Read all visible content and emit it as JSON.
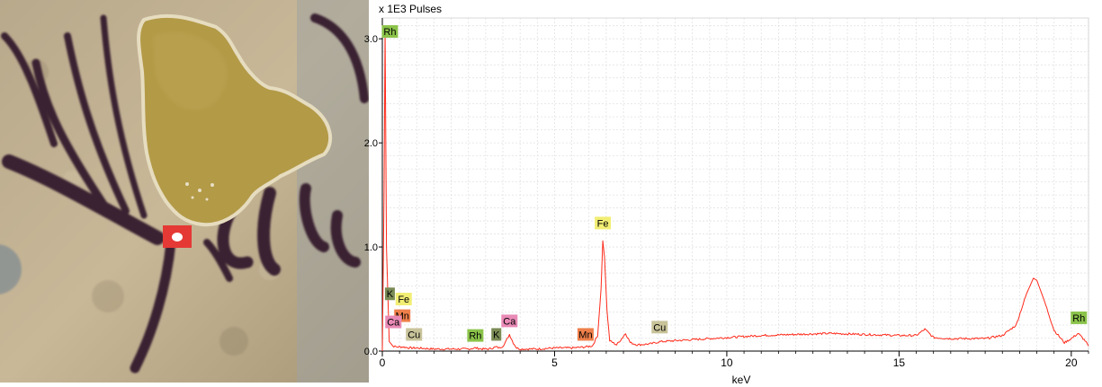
{
  "photo": {
    "subject": "ink-on-paper-micrograph",
    "marker_color": "#e53935"
  },
  "chart_data": {
    "type": "line",
    "unit_label": "x 1E3 Pulses",
    "xlabel": "keV",
    "ylabel": "",
    "xlim": [
      0,
      20.5
    ],
    "ylim": [
      0,
      3.2
    ],
    "x_ticks": [
      0,
      5,
      10,
      15,
      20
    ],
    "y_ticks": [
      0.0,
      1.0,
      2.0,
      3.0
    ],
    "x_tick_labels": [
      "0",
      "5",
      "10",
      "15",
      "20"
    ],
    "y_tick_labels": [
      "0.0",
      "1.0",
      "2.0",
      "3.0"
    ],
    "grid": true,
    "line_color": "#ff2a1a",
    "series": [
      {
        "x": [
          0.0,
          0.05,
          0.08,
          0.12,
          0.2,
          0.3,
          0.4,
          0.6,
          0.8,
          1.0,
          1.5,
          2.0,
          2.5,
          2.7,
          2.9,
          3.1,
          3.3,
          3.4,
          3.5,
          3.6,
          3.69,
          3.8,
          3.9,
          4.0,
          4.5,
          5.0,
          5.5,
          5.9,
          6.1,
          6.25,
          6.35,
          6.4,
          6.45,
          6.52,
          6.6,
          6.8,
          6.95,
          7.06,
          7.2,
          7.4,
          7.8,
          8.05,
          8.5,
          9.0,
          9.5,
          10.0,
          10.5,
          11.0,
          12.0,
          13.0,
          14.0,
          15.0,
          15.5,
          15.75,
          16.0,
          16.5,
          17.0,
          17.5,
          18.0,
          18.4,
          18.7,
          18.9,
          19.0,
          19.2,
          19.5,
          19.8,
          20.0,
          20.2,
          20.4,
          20.5
        ],
        "y": [
          0.0,
          1.5,
          3.1,
          1.0,
          0.1,
          0.05,
          0.04,
          0.04,
          0.03,
          0.03,
          0.02,
          0.02,
          0.02,
          0.03,
          0.02,
          0.02,
          0.04,
          0.03,
          0.05,
          0.1,
          0.16,
          0.08,
          0.03,
          0.02,
          0.02,
          0.03,
          0.03,
          0.04,
          0.05,
          0.15,
          0.6,
          1.06,
          0.9,
          0.4,
          0.1,
          0.06,
          0.12,
          0.17,
          0.08,
          0.06,
          0.07,
          0.09,
          0.1,
          0.11,
          0.12,
          0.13,
          0.14,
          0.15,
          0.16,
          0.17,
          0.16,
          0.15,
          0.15,
          0.21,
          0.13,
          0.12,
          0.12,
          0.12,
          0.15,
          0.25,
          0.55,
          0.7,
          0.68,
          0.5,
          0.2,
          0.08,
          0.12,
          0.17,
          0.1,
          0.05
        ]
      }
    ],
    "annotations": [
      {
        "label": "Rh",
        "x": 0.22,
        "y": 3.07,
        "color": "#8bc34a"
      },
      {
        "label": "K",
        "x": 0.22,
        "y": 0.55,
        "color": "#7a8b55"
      },
      {
        "label": "Fe",
        "x": 0.62,
        "y": 0.5,
        "color": "#f2ee74"
      },
      {
        "label": "Mn",
        "x": 0.58,
        "y": 0.34,
        "color": "#ee7f4a"
      },
      {
        "label": "Ca",
        "x": 0.32,
        "y": 0.28,
        "color": "#e98ab6"
      },
      {
        "label": "Cu",
        "x": 0.92,
        "y": 0.16,
        "color": "#c9c39a"
      },
      {
        "label": "Rh",
        "x": 2.7,
        "y": 0.15,
        "color": "#8bc34a"
      },
      {
        "label": "K",
        "x": 3.31,
        "y": 0.16,
        "color": "#7a8b55"
      },
      {
        "label": "Ca",
        "x": 3.69,
        "y": 0.29,
        "color": "#e98ab6"
      },
      {
        "label": "Mn",
        "x": 5.9,
        "y": 0.16,
        "color": "#ee7f4a"
      },
      {
        "label": "Fe",
        "x": 6.4,
        "y": 1.23,
        "color": "#f2ee74"
      },
      {
        "label": "Cu",
        "x": 8.05,
        "y": 0.23,
        "color": "#c9c39a"
      },
      {
        "label": "Rh",
        "x": 20.22,
        "y": 0.32,
        "color": "#8bc34a"
      }
    ]
  }
}
